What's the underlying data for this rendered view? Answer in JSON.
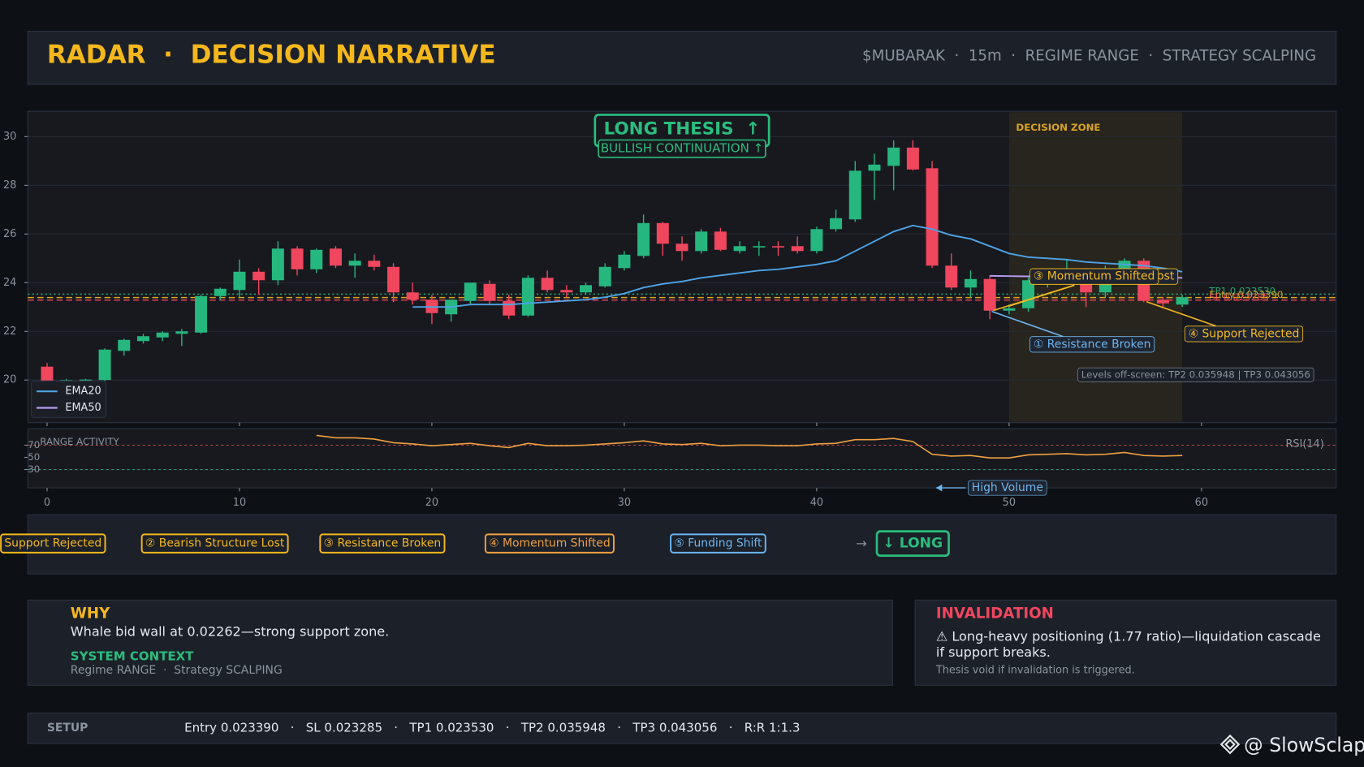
{
  "header": {
    "title": "RADAR  ·  DECISION NARRATIVE",
    "meta": "$MUBARAK  ·  15m  ·  REGIME RANGE  ·  STRATEGY SCALPING"
  },
  "chart_data": {
    "type": "candlestick",
    "x": [
      0,
      1,
      2,
      3,
      4,
      5,
      6,
      7,
      8,
      9,
      10,
      11,
      12,
      13,
      14,
      15,
      16,
      17,
      18,
      19,
      20,
      21,
      22,
      23,
      24,
      25,
      26,
      27,
      28,
      29,
      30,
      31,
      32,
      33,
      34,
      35,
      36,
      37,
      38,
      39,
      40,
      41,
      42,
      43,
      44,
      45,
      46,
      47,
      48,
      49,
      50,
      51,
      52,
      53,
      54,
      55,
      56,
      57,
      58,
      59
    ],
    "open": [
      20.55,
      19.95,
      19.95,
      20.0,
      21.2,
      21.6,
      21.75,
      21.9,
      21.95,
      23.45,
      23.7,
      24.45,
      24.1,
      25.4,
      24.55,
      25.4,
      24.7,
      24.9,
      24.65,
      23.6,
      23.3,
      22.7,
      23.25,
      23.95,
      23.25,
      22.65,
      24.2,
      23.7,
      23.6,
      23.85,
      24.6,
      25.1,
      26.45,
      25.6,
      25.3,
      26.1,
      25.3,
      25.45,
      25.5,
      25.5,
      25.3,
      26.2,
      26.6,
      28.6,
      28.8,
      29.55,
      28.7,
      24.7,
      23.8,
      24.15,
      22.85,
      22.95,
      24.1,
      24.3,
      24.5,
      23.6,
      24.5,
      24.9,
      23.3,
      23.1
    ],
    "high": [
      20.7,
      20.05,
      20.05,
      21.3,
      21.7,
      21.9,
      22.0,
      22.1,
      23.5,
      23.8,
      24.95,
      24.6,
      25.7,
      25.5,
      25.4,
      25.5,
      25.2,
      25.15,
      24.8,
      24.0,
      23.5,
      23.3,
      24.0,
      24.1,
      23.5,
      24.3,
      24.5,
      23.9,
      24.0,
      24.8,
      25.3,
      26.8,
      26.5,
      25.9,
      26.2,
      26.25,
      25.7,
      25.7,
      25.7,
      25.9,
      26.3,
      27.0,
      29.0,
      29.3,
      29.85,
      29.85,
      29.0,
      25.2,
      24.5,
      24.3,
      23.1,
      24.2,
      24.5,
      24.95,
      24.6,
      24.7,
      25.0,
      25.0,
      23.4,
      23.5
    ],
    "low": [
      19.6,
      19.9,
      19.9,
      19.95,
      21.0,
      21.5,
      21.6,
      21.4,
      21.9,
      23.3,
      23.4,
      23.5,
      23.9,
      24.3,
      24.4,
      24.6,
      24.2,
      24.5,
      23.2,
      23.1,
      22.3,
      22.4,
      23.1,
      23.1,
      22.5,
      22.6,
      23.6,
      23.4,
      23.5,
      23.8,
      24.5,
      25.0,
      25.1,
      24.9,
      25.2,
      25.3,
      25.2,
      25.1,
      25.1,
      25.2,
      25.2,
      26.1,
      26.5,
      27.4,
      27.8,
      28.6,
      24.6,
      23.7,
      23.4,
      22.5,
      22.7,
      22.8,
      23.8,
      24.0,
      23.0,
      23.4,
      24.3,
      23.2,
      23.0,
      23.0
    ],
    "close": [
      19.75,
      20.0,
      20.02,
      21.25,
      21.65,
      21.8,
      21.95,
      22.0,
      23.45,
      23.75,
      24.45,
      24.1,
      25.4,
      24.55,
      25.35,
      24.7,
      24.9,
      24.65,
      23.6,
      23.3,
      22.75,
      23.3,
      24.0,
      23.25,
      22.65,
      24.2,
      23.7,
      23.6,
      23.9,
      24.65,
      25.15,
      26.45,
      25.6,
      25.3,
      26.1,
      25.35,
      25.5,
      25.5,
      25.45,
      25.3,
      26.2,
      26.65,
      28.6,
      28.85,
      29.55,
      28.65,
      24.7,
      23.8,
      24.15,
      22.85,
      22.95,
      24.1,
      24.3,
      24.5,
      23.6,
      24.5,
      24.9,
      23.25,
      23.15,
      23.4
    ],
    "up_color": "#26b77f",
    "down_color": "#f0465e",
    "xlim": [
      -1,
      67
    ],
    "xticks": [
      0,
      10,
      20,
      30,
      40,
      50,
      60
    ],
    "ylim": [
      18.25,
      31.04
    ],
    "yticks": [
      20,
      22,
      24,
      26,
      28,
      30
    ],
    "grid": true,
    "lines": [
      {
        "name": "EMA20",
        "color": "#4ea3e6",
        "values": [
          null,
          null,
          null,
          null,
          null,
          null,
          null,
          null,
          null,
          null,
          null,
          null,
          null,
          null,
          null,
          null,
          null,
          null,
          null,
          23.0,
          23.0,
          23.0,
          23.1,
          23.1,
          23.1,
          23.15,
          23.2,
          23.25,
          23.3,
          23.4,
          23.55,
          23.8,
          23.95,
          24.05,
          24.2,
          24.3,
          24.4,
          24.5,
          24.55,
          24.65,
          24.75,
          24.9,
          25.3,
          25.7,
          26.1,
          26.35,
          26.2,
          25.95,
          25.8,
          25.5,
          25.2,
          25.05,
          25.0,
          24.95,
          24.85,
          24.8,
          24.75,
          24.7,
          24.6,
          24.45
        ]
      },
      {
        "name": "EMA50",
        "color": "#b89cf0",
        "values": [
          null,
          null,
          null,
          null,
          null,
          null,
          null,
          null,
          null,
          null,
          null,
          null,
          null,
          null,
          null,
          null,
          null,
          null,
          null,
          null,
          null,
          null,
          null,
          null,
          null,
          null,
          null,
          null,
          null,
          null,
          null,
          null,
          null,
          null,
          null,
          null,
          null,
          null,
          null,
          null,
          null,
          null,
          null,
          null,
          null,
          null,
          null,
          null,
          null,
          24.28,
          24.27,
          24.26,
          24.25,
          24.25,
          24.24,
          24.24,
          24.23,
          24.22,
          24.21,
          24.2
        ]
      }
    ],
    "legend": "lower left",
    "levels": [
      {
        "label": "TP1 0.023530",
        "value": 23.53,
        "color": "#2bbd7e",
        "style": "dotted"
      },
      {
        "label": "Entry 0.023390",
        "value": 23.39,
        "color": "#f5b81c",
        "style": "dashed"
      },
      {
        "label": "SL 0.023285",
        "value": 23.285,
        "color": "#f0465e",
        "style": "dashed"
      }
    ],
    "thesis": {
      "title": "LONG THESIS  ↑",
      "subtitle": "BULLISH CONTINUATION ↑",
      "color": "#2bbd7e"
    },
    "decision_zone": {
      "label": "DECISION ZONE",
      "x": [
        50,
        59
      ]
    },
    "annotations": [
      {
        "text": "② Bearish Structure Lost",
        "color": "#f5b81c"
      },
      {
        "text": "③ Momentum Shifted",
        "color": "#f5b81c"
      },
      {
        "text": "① Resistance Broken",
        "color": "#6cb6f0"
      },
      {
        "text": "④ Support Rejected",
        "color": "#f5b81c"
      }
    ],
    "note": "Levels off-screen: TP2 0.035948 | TP3 0.043056",
    "rsi": {
      "title": "RANGE ACTIVITY",
      "name": "RSI(14)",
      "color": "#f0a040",
      "values": [
        null,
        null,
        null,
        null,
        null,
        null,
        null,
        null,
        null,
        null,
        null,
        null,
        null,
        null,
        86,
        82,
        82,
        80,
        74,
        72,
        69,
        71,
        73,
        69,
        66,
        73,
        69,
        69,
        70,
        72,
        74,
        77,
        72,
        71,
        73,
        69,
        70,
        70,
        69,
        69,
        72,
        73,
        79,
        79,
        81,
        76,
        55,
        52,
        53,
        49,
        49,
        54,
        55,
        56,
        54,
        55,
        58,
        53,
        52,
        53
      ],
      "ylim": [
        0,
        97
      ],
      "yticks": [
        30,
        50,
        70
      ],
      "annotation": "High Volume"
    }
  },
  "chain": {
    "items": [
      {
        "text": "Support Rejected",
        "color": "#f5b81c"
      },
      {
        "text": "② Bearish Structure Lost",
        "color": "#f5b81c"
      },
      {
        "text": "③ Resistance Broken",
        "color": "#f5b81c"
      },
      {
        "text": "④ Momentum Shifted",
        "color": "#f0a040"
      },
      {
        "text": "⑤ Funding Shift",
        "color": "#6cb6f0"
      }
    ],
    "arrow": "→",
    "outcome": "↓ LONG"
  },
  "why": {
    "title": "WHY",
    "text": "Whale bid wall at 0.02262—strong support zone.",
    "context_title": "SYSTEM CONTEXT",
    "context": "Regime RANGE  ·  Strategy SCALPING"
  },
  "invalidation": {
    "title": "INVALIDATION",
    "text": "⚠ Long-heavy positioning (1.77 ratio)—liquidation cascade if support breaks.",
    "note": "Thesis void if invalidation is triggered."
  },
  "setup": {
    "title": "SETUP",
    "text": "Entry 0.023390   ·   SL 0.023285   ·   TP1 0.023530   ·   TP2 0.035948   ·   TP3 0.043056   ·   R:R 1:1.3"
  },
  "watermark": "@ SlowSclap"
}
